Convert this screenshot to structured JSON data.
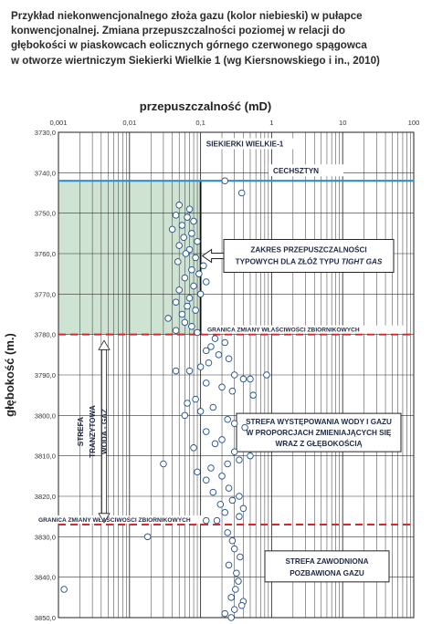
{
  "caption": [
    "Przykład niekonwencjonalnego złoża gazu (kolor niebieski) w pułapce",
    "konwencjonalnej. Zmiana przepuszczalności poziomej w relacji do",
    "głębokości w piaskowcach eolicznych górnego czerwonego spągowca",
    "w otworze wiertniczym Siekierki Wielkie 1 (wg Kiersnowskiego i in., 2010)"
  ],
  "chart_data": {
    "type": "scatter",
    "xlabel": "przepuszczalność (mD)",
    "ylabel": "głębokość (m.)",
    "x_scale": "log",
    "xlim": [
      0.001,
      100
    ],
    "ylim": [
      3730,
      3850
    ],
    "y_inverted": true,
    "x_tick_labels": [
      "0,001",
      "0,01",
      "0,1",
      "1",
      "10",
      "100"
    ],
    "y_tick_labels": [
      "3730,0",
      "3740,0",
      "3750,0",
      "3760,0",
      "3770,0",
      "3780,0",
      "3790,0",
      "3800,0",
      "3810,0",
      "3820,0",
      "3830,0",
      "3840,0",
      "3850,0"
    ],
    "grid": true,
    "well_label": "SIEKIERKI WIELKIE-1",
    "cechsztyn_label": "CECHSZTYN",
    "cechsztyn_depth": 3742,
    "boundaries": [
      {
        "label": "GRANICA ZMIANY WŁAŚCIWOŚCI ZBIORNIKOWYCH",
        "depth": 3780
      },
      {
        "label": "GRANICA ZMIANY WŁAŚCIWOŚCI ZBIORNIKOWYCH",
        "depth": 3827
      }
    ],
    "tight_gas_zone": {
      "depth_top": 3742,
      "depth_bottom": 3780,
      "x_max": 0.1
    },
    "tight_gas_label": [
      "ZAKRES PRZEPUSZCZALNOŚCI",
      "TYPOWYCH DLA ZŁÓŻ TYPU ",
      "TIGHT GAS"
    ],
    "zone_mixed_label": [
      "STREFA WYSTĘPOWANIA WODY I GAZU",
      "W PROPORCJACH ZMIENIAJĄCYCH SIĘ",
      "WRAZ Z GŁĘBOKOŚCIĄ"
    ],
    "zone_water_label": [
      "STREFA ZAWODNIONA",
      "POZBAWIONA GAZU"
    ],
    "transition_label": [
      "STREFA",
      "TRANZYTOWA",
      "WODA - GAZ"
    ],
    "colors": {
      "tight_zone": "#cfe3d2",
      "cechsztyn_line": "#2e8fd1",
      "boundary_line": "#d9262b",
      "points_stroke": "#1f4f8a",
      "grid": "#333333",
      "box_fill": "#ffffff"
    },
    "points": [
      [
        0.22,
        3742
      ],
      [
        0.38,
        3745
      ],
      [
        0.05,
        3748
      ],
      [
        0.07,
        3749
      ],
      [
        0.045,
        3750.5
      ],
      [
        0.065,
        3751
      ],
      [
        0.08,
        3752
      ],
      [
        0.055,
        3753
      ],
      [
        0.04,
        3754
      ],
      [
        0.075,
        3755
      ],
      [
        0.058,
        3756
      ],
      [
        0.09,
        3757
      ],
      [
        0.05,
        3758
      ],
      [
        0.07,
        3759
      ],
      [
        0.062,
        3760
      ],
      [
        0.085,
        3761
      ],
      [
        0.048,
        3762
      ],
      [
        0.11,
        3763
      ],
      [
        0.075,
        3764
      ],
      [
        0.095,
        3765
      ],
      [
        0.06,
        3766
      ],
      [
        0.12,
        3767
      ],
      [
        0.08,
        3768
      ],
      [
        0.05,
        3769
      ],
      [
        0.1,
        3770
      ],
      [
        0.07,
        3771
      ],
      [
        0.045,
        3772
      ],
      [
        0.065,
        3773
      ],
      [
        0.085,
        3774
      ],
      [
        0.055,
        3775
      ],
      [
        0.035,
        3776
      ],
      [
        0.06,
        3777
      ],
      [
        0.075,
        3778
      ],
      [
        0.045,
        3779
      ],
      [
        0.09,
        3779.5
      ],
      [
        0.16,
        3781
      ],
      [
        0.22,
        3782
      ],
      [
        0.14,
        3783
      ],
      [
        0.12,
        3784
      ],
      [
        0.18,
        3785
      ],
      [
        0.25,
        3786
      ],
      [
        0.13,
        3787
      ],
      [
        0.1,
        3788
      ],
      [
        0.07,
        3789
      ],
      [
        0.045,
        3789
      ],
      [
        0.3,
        3790
      ],
      [
        0.5,
        3791
      ],
      [
        0.85,
        3790
      ],
      [
        0.4,
        3791
      ],
      [
        0.12,
        3792
      ],
      [
        0.2,
        3793
      ],
      [
        0.28,
        3794
      ],
      [
        0.55,
        3795
      ],
      [
        0.085,
        3796
      ],
      [
        0.065,
        3797
      ],
      [
        0.15,
        3798
      ],
      [
        0.1,
        3799
      ],
      [
        0.06,
        3800
      ],
      [
        0.24,
        3801
      ],
      [
        0.3,
        3802
      ],
      [
        0.42,
        3803
      ],
      [
        0.12,
        3804
      ],
      [
        0.2,
        3806
      ],
      [
        0.16,
        3807
      ],
      [
        0.08,
        3808
      ],
      [
        0.3,
        3809
      ],
      [
        0.5,
        3810
      ],
      [
        0.35,
        3811
      ],
      [
        0.03,
        3812
      ],
      [
        0.24,
        3812
      ],
      [
        0.14,
        3813
      ],
      [
        0.09,
        3814
      ],
      [
        0.2,
        3815
      ],
      [
        0.12,
        3816
      ],
      [
        0.25,
        3818
      ],
      [
        0.15,
        3819
      ],
      [
        0.35,
        3820
      ],
      [
        0.28,
        3821
      ],
      [
        0.19,
        3822
      ],
      [
        0.4,
        3823
      ],
      [
        0.22,
        3824
      ],
      [
        0.35,
        3825
      ],
      [
        0.17,
        3826
      ],
      [
        0.12,
        3826
      ],
      [
        0.018,
        3830
      ],
      [
        0.24,
        3829
      ],
      [
        0.28,
        3831
      ],
      [
        0.3,
        3833
      ],
      [
        0.36,
        3835
      ],
      [
        0.25,
        3837
      ],
      [
        0.32,
        3839
      ],
      [
        0.34,
        3841
      ],
      [
        0.31,
        3843
      ],
      [
        0.27,
        3845
      ],
      [
        0.4,
        3846
      ],
      [
        0.38,
        3847
      ],
      [
        0.3,
        3848
      ],
      [
        0.22,
        3849
      ],
      [
        0.0012,
        3843
      ],
      [
        0.27,
        3850
      ]
    ]
  }
}
